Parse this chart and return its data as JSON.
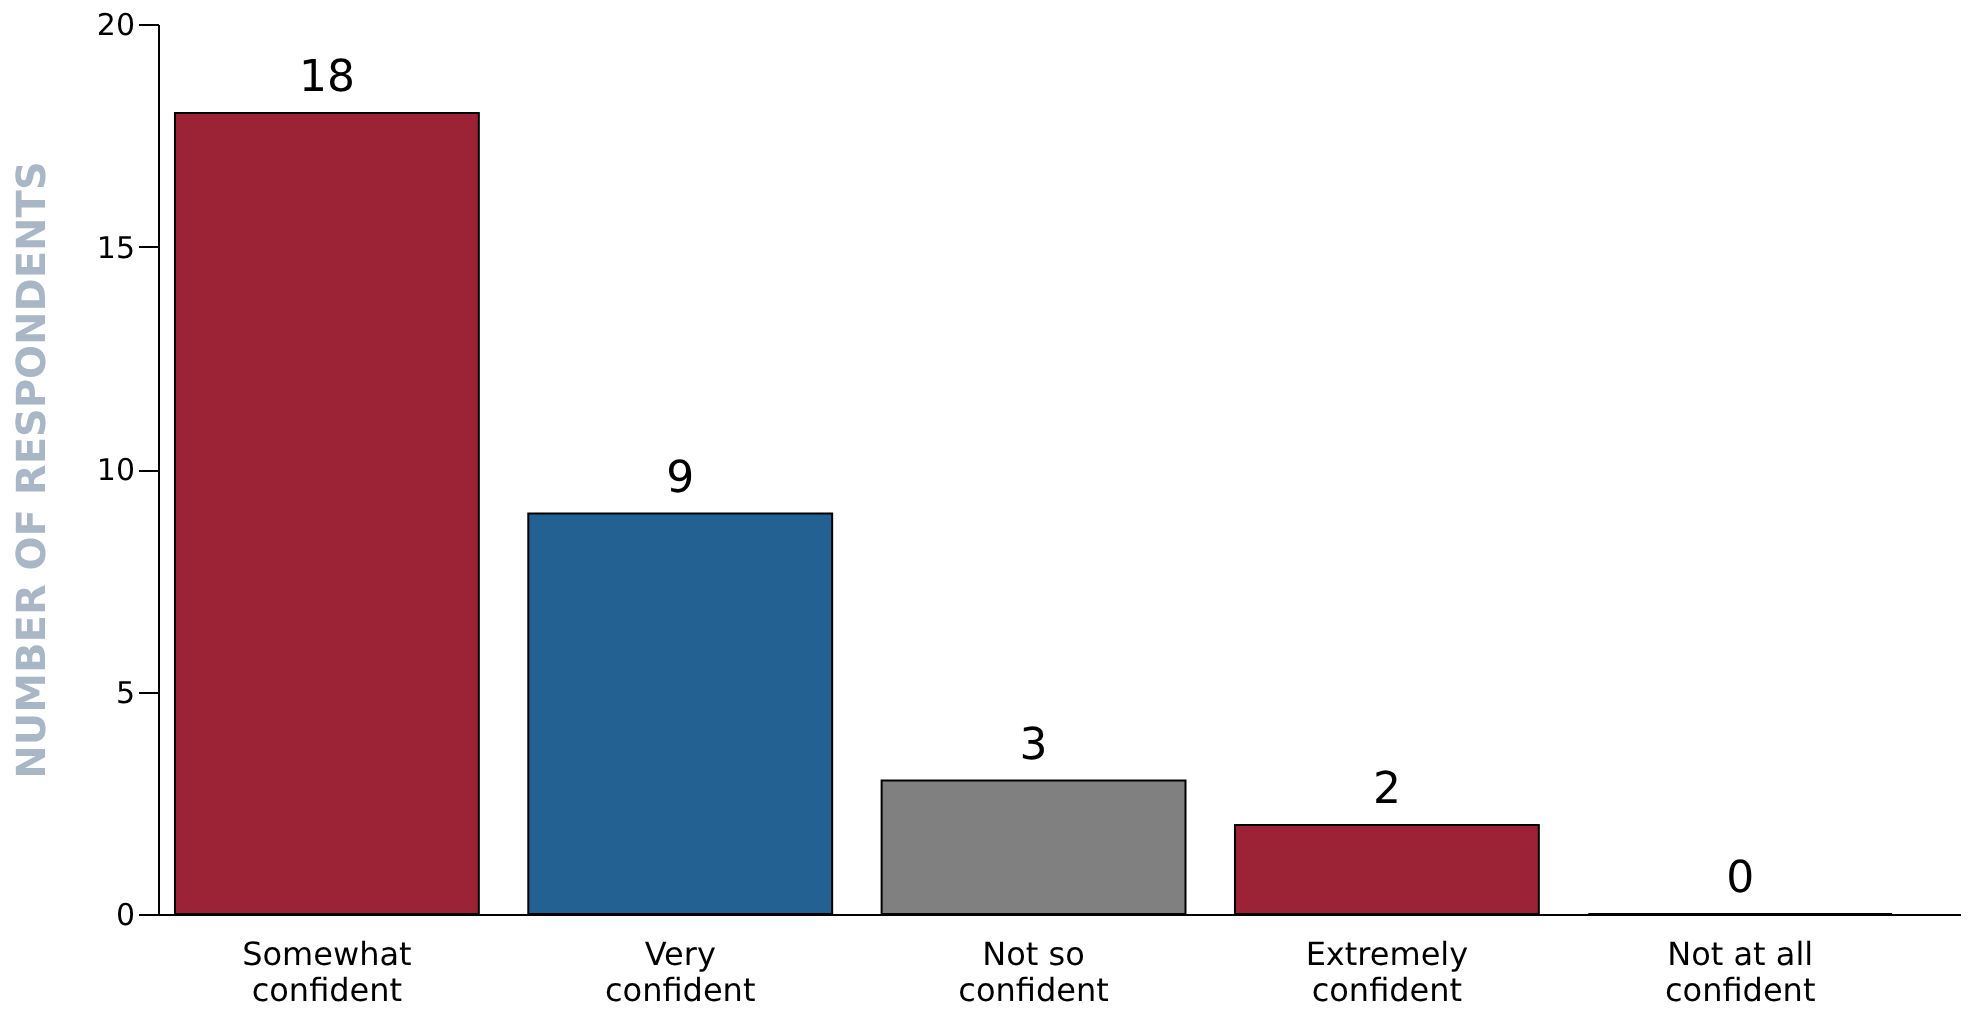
{
  "chart_data": {
    "type": "bar",
    "ylabel": "NUMBER OF RESPONDENTS",
    "categories": [
      "Somewhat\nconfident",
      "Very\nconfident",
      "Not so\nconfident",
      "Extremely\nconfident",
      "Not at all\nconfident"
    ],
    "values": [
      18,
      9,
      3,
      2,
      0
    ],
    "colors": [
      "#9b2335",
      "#236192",
      "#808080",
      "#9b2335",
      "#9b2335"
    ],
    "ylim": [
      0,
      20
    ],
    "yticks": [
      0,
      5,
      10,
      15,
      20
    ],
    "data_labels": true,
    "grid": false
  }
}
